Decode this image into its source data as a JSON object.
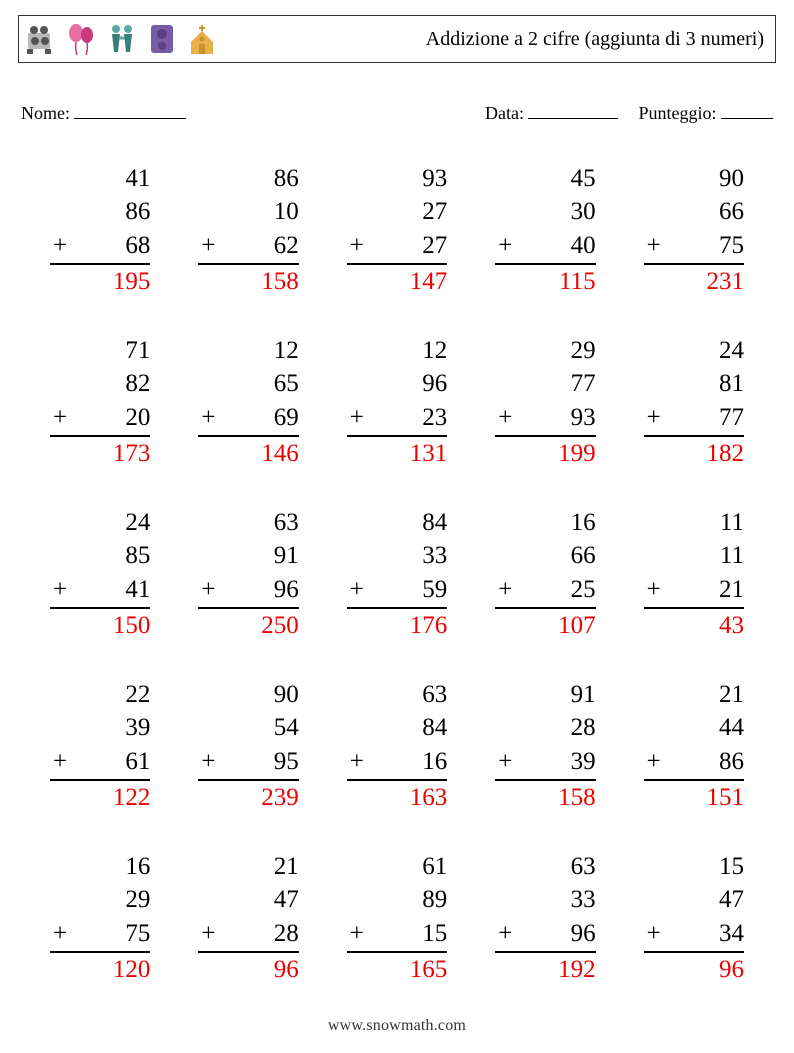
{
  "header": {
    "title": "Addizione a 2 cifre (aggiunta di 3 numeri)"
  },
  "labels": {
    "name": "Nome:",
    "date": "Data:",
    "score": "Punteggio:"
  },
  "underline_widths": {
    "name": 112,
    "date": 90,
    "score": 52
  },
  "operator": "+",
  "colors": {
    "text": "#000000",
    "answer": "#ee0000",
    "border": "#333333",
    "background": "#ffffff"
  },
  "typography": {
    "problem_fontsize": 25,
    "header_fontsize": 20,
    "label_fontsize": 18,
    "footer_fontsize": 16,
    "font_family": "Times New Roman"
  },
  "layout": {
    "columns": 5,
    "rows": 5
  },
  "icons": [
    {
      "name": "camera-icon",
      "fill": "#b8b8b8",
      "accent": "#555555"
    },
    {
      "name": "balloons-icon",
      "fill": "#e86fa4",
      "accent": "#c83a7a"
    },
    {
      "name": "toast-icon",
      "fill": "#5aa9a0",
      "accent": "#3a7f77"
    },
    {
      "name": "speaker-icon",
      "fill": "#7a5ba8",
      "accent": "#5a3f82"
    },
    {
      "name": "church-icon",
      "fill": "#e8b24a",
      "accent": "#c98f2a"
    }
  ],
  "problems": [
    {
      "a": 41,
      "b": 86,
      "c": 68,
      "ans": 195
    },
    {
      "a": 86,
      "b": 10,
      "c": 62,
      "ans": 158
    },
    {
      "a": 93,
      "b": 27,
      "c": 27,
      "ans": 147
    },
    {
      "a": 45,
      "b": 30,
      "c": 40,
      "ans": 115
    },
    {
      "a": 90,
      "b": 66,
      "c": 75,
      "ans": 231
    },
    {
      "a": 71,
      "b": 82,
      "c": 20,
      "ans": 173
    },
    {
      "a": 12,
      "b": 65,
      "c": 69,
      "ans": 146
    },
    {
      "a": 12,
      "b": 96,
      "c": 23,
      "ans": 131
    },
    {
      "a": 29,
      "b": 77,
      "c": 93,
      "ans": 199
    },
    {
      "a": 24,
      "b": 81,
      "c": 77,
      "ans": 182
    },
    {
      "a": 24,
      "b": 85,
      "c": 41,
      "ans": 150
    },
    {
      "a": 63,
      "b": 91,
      "c": 96,
      "ans": 250
    },
    {
      "a": 84,
      "b": 33,
      "c": 59,
      "ans": 176
    },
    {
      "a": 16,
      "b": 66,
      "c": 25,
      "ans": 107
    },
    {
      "a": 11,
      "b": 11,
      "c": 21,
      "ans": 43
    },
    {
      "a": 22,
      "b": 39,
      "c": 61,
      "ans": 122
    },
    {
      "a": 90,
      "b": 54,
      "c": 95,
      "ans": 239
    },
    {
      "a": 63,
      "b": 84,
      "c": 16,
      "ans": 163
    },
    {
      "a": 91,
      "b": 28,
      "c": 39,
      "ans": 158
    },
    {
      "a": 21,
      "b": 44,
      "c": 86,
      "ans": 151
    },
    {
      "a": 16,
      "b": 29,
      "c": 75,
      "ans": 120
    },
    {
      "a": 21,
      "b": 47,
      "c": 28,
      "ans": 96
    },
    {
      "a": 61,
      "b": 89,
      "c": 15,
      "ans": 165
    },
    {
      "a": 63,
      "b": 33,
      "c": 96,
      "ans": 192
    },
    {
      "a": 15,
      "b": 47,
      "c": 34,
      "ans": 96
    }
  ],
  "footer": {
    "text_prefix": "www.",
    "text_mid": "snow",
    "text_suffix": "math.com"
  }
}
